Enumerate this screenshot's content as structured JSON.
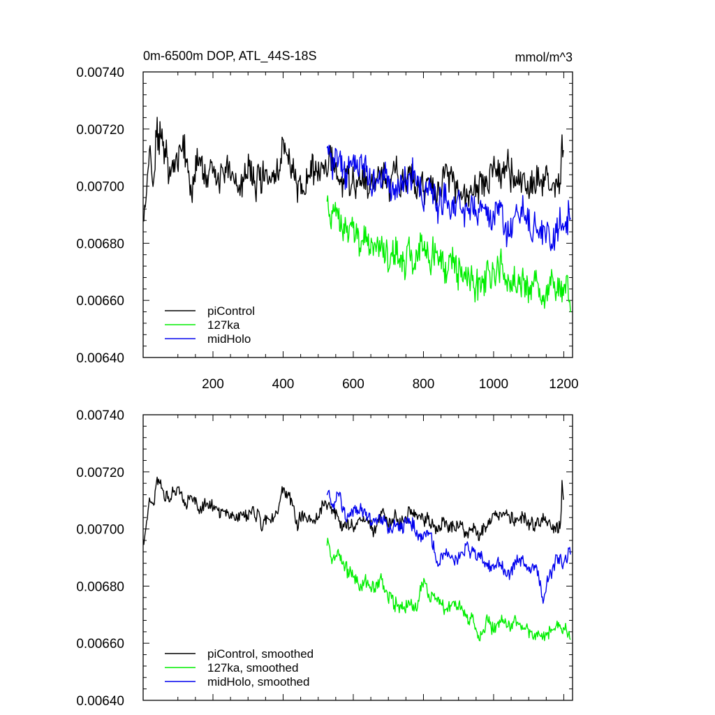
{
  "chart_data": [
    {
      "type": "line",
      "title": "0m-6500m DOP, ATL_44S-18S",
      "units": "mmol/m^3",
      "xlabel": "",
      "ylabel": "",
      "xlim": [
        1,
        1225
      ],
      "ylim": [
        0.0064,
        0.0074
      ],
      "x_ticks": [
        200,
        400,
        600,
        800,
        1000,
        1200
      ],
      "x_tick_labels": [
        "200",
        "400",
        "600",
        "800",
        "1000",
        "1200"
      ],
      "y_ticks": [
        0.0064,
        0.0066,
        0.0068,
        0.007,
        0.0072,
        0.0074
      ],
      "y_tick_labels": [
        "0.00640",
        "0.00660",
        "0.00680",
        "0.00700",
        "0.00720",
        "0.00740"
      ],
      "legend_position": "bottom-left",
      "grid": false,
      "series": [
        {
          "name": "piControl",
          "color": "#000000",
          "x": [
            1,
            10,
            20,
            30,
            40,
            60,
            80,
            100,
            120,
            140,
            160,
            180,
            200,
            220,
            240,
            260,
            280,
            300,
            320,
            340,
            360,
            380,
            400,
            420,
            440,
            460,
            480,
            500,
            520,
            540,
            560,
            580,
            600,
            620,
            640,
            660,
            680,
            700,
            720,
            740,
            760,
            780,
            800,
            820,
            840,
            860,
            880,
            900,
            920,
            940,
            960,
            980,
            1000,
            1020,
            1040,
            1060,
            1080,
            1100,
            1120,
            1140,
            1160,
            1180,
            1190,
            1195,
            1200
          ],
          "y": [
            0.00688,
            0.00698,
            0.00712,
            0.007,
            0.0072,
            0.00712,
            0.00705,
            0.00708,
            0.00712,
            0.007,
            0.0071,
            0.00704,
            0.00706,
            0.00702,
            0.00708,
            0.00704,
            0.00702,
            0.00706,
            0.007,
            0.00704,
            0.00702,
            0.00704,
            0.00715,
            0.00706,
            0.007,
            0.00702,
            0.00708,
            0.00704,
            0.00706,
            0.00708,
            0.007,
            0.00704,
            0.007,
            0.00706,
            0.00698,
            0.00702,
            0.00704,
            0.00698,
            0.00706,
            0.007,
            0.00704,
            0.007,
            0.007,
            0.00702,
            0.00696,
            0.00704,
            0.00702,
            0.00698,
            0.00696,
            0.00698,
            0.007,
            0.00702,
            0.00706,
            0.00704,
            0.00708,
            0.007,
            0.00702,
            0.007,
            0.00704,
            0.007,
            0.00702,
            0.007,
            0.00702,
            0.00718,
            0.00712
          ]
        },
        {
          "name": "127ka",
          "color": "#00ee00",
          "x": [
            525,
            540,
            560,
            580,
            600,
            620,
            640,
            660,
            680,
            700,
            720,
            740,
            760,
            780,
            800,
            820,
            840,
            860,
            880,
            900,
            920,
            940,
            960,
            980,
            1000,
            1020,
            1040,
            1060,
            1080,
            1100,
            1120,
            1140,
            1160,
            1180,
            1200,
            1220
          ],
          "y": [
            0.00694,
            0.0069,
            0.00688,
            0.00684,
            0.00686,
            0.0068,
            0.00682,
            0.00676,
            0.0068,
            0.00674,
            0.00678,
            0.00672,
            0.00676,
            0.00672,
            0.00682,
            0.00674,
            0.00678,
            0.0067,
            0.00676,
            0.00668,
            0.00672,
            0.00666,
            0.00664,
            0.0067,
            0.00666,
            0.00672,
            0.00664,
            0.00668,
            0.00666,
            0.00662,
            0.00668,
            0.0066,
            0.00666,
            0.00662,
            0.00666,
            0.0066
          ]
        },
        {
          "name": "midHolo",
          "color": "#0000ee",
          "x": [
            525,
            540,
            560,
            580,
            600,
            620,
            640,
            660,
            680,
            700,
            720,
            740,
            760,
            780,
            800,
            820,
            840,
            860,
            880,
            900,
            920,
            940,
            960,
            980,
            1000,
            1020,
            1040,
            1060,
            1080,
            1100,
            1120,
            1140,
            1160,
            1180,
            1200,
            1220
          ],
          "y": [
            0.00716,
            0.00708,
            0.0071,
            0.00704,
            0.00708,
            0.00706,
            0.00704,
            0.007,
            0.00704,
            0.00702,
            0.00698,
            0.007,
            0.00704,
            0.00702,
            0.00696,
            0.007,
            0.00692,
            0.00698,
            0.00692,
            0.00696,
            0.0069,
            0.00694,
            0.0069,
            0.00692,
            0.00686,
            0.00692,
            0.00684,
            0.0069,
            0.00692,
            0.00686,
            0.00688,
            0.00684,
            0.0068,
            0.00686,
            0.00688,
            0.0069
          ]
        }
      ]
    },
    {
      "type": "line",
      "title": "",
      "xlabel": "",
      "ylabel": "",
      "xlim": [
        1,
        1225
      ],
      "ylim": [
        0.0064,
        0.0074
      ],
      "x_ticks": [
        200,
        400,
        600,
        800,
        1000,
        1200
      ],
      "x_tick_labels": [],
      "y_ticks": [
        0.0064,
        0.0066,
        0.0068,
        0.007,
        0.0072,
        0.0074
      ],
      "y_tick_labels": [
        "0.00640",
        "0.00660",
        "0.00680",
        "0.00700",
        "0.00720",
        "0.00740"
      ],
      "legend_position": "bottom-left",
      "grid": false,
      "series": [
        {
          "name": "piControl, smoothed",
          "color": "#000000",
          "x": [
            1,
            10,
            20,
            30,
            40,
            50,
            60,
            80,
            100,
            120,
            140,
            160,
            180,
            200,
            220,
            240,
            260,
            280,
            300,
            320,
            340,
            360,
            380,
            400,
            420,
            440,
            460,
            480,
            500,
            520,
            540,
            560,
            580,
            600,
            620,
            640,
            660,
            680,
            700,
            720,
            740,
            760,
            780,
            800,
            820,
            840,
            860,
            880,
            900,
            920,
            940,
            960,
            980,
            1000,
            1020,
            1040,
            1060,
            1080,
            1100,
            1120,
            1140,
            1160,
            1180,
            1190,
            1195,
            1200
          ],
          "y": [
            0.00696,
            0.00702,
            0.0071,
            0.00708,
            0.00718,
            0.00716,
            0.0071,
            0.00712,
            0.00714,
            0.00708,
            0.00712,
            0.00706,
            0.0071,
            0.00708,
            0.00706,
            0.00706,
            0.00704,
            0.00706,
            0.00704,
            0.00706,
            0.00702,
            0.00704,
            0.00704,
            0.00714,
            0.0071,
            0.00702,
            0.00706,
            0.00704,
            0.00704,
            0.0071,
            0.00706,
            0.00702,
            0.00702,
            0.007,
            0.00704,
            0.00702,
            0.007,
            0.00706,
            0.00702,
            0.00704,
            0.00702,
            0.00706,
            0.00704,
            0.00704,
            0.00702,
            0.007,
            0.00702,
            0.007,
            0.00702,
            0.00698,
            0.007,
            0.00698,
            0.00702,
            0.00704,
            0.00704,
            0.00706,
            0.00702,
            0.00704,
            0.00702,
            0.00702,
            0.00704,
            0.00702,
            0.007,
            0.00702,
            0.00716,
            0.00712
          ]
        },
        {
          "name": "127ka, smoothed",
          "color": "#00ee00",
          "x": [
            525,
            540,
            560,
            580,
            600,
            620,
            640,
            660,
            680,
            700,
            720,
            740,
            760,
            780,
            800,
            820,
            840,
            860,
            880,
            900,
            920,
            940,
            960,
            980,
            1000,
            1020,
            1040,
            1060,
            1080,
            1100,
            1120,
            1140,
            1160,
            1180,
            1200,
            1220
          ],
          "y": [
            0.00696,
            0.0069,
            0.0069,
            0.00686,
            0.00684,
            0.0068,
            0.00682,
            0.00678,
            0.00682,
            0.00676,
            0.00674,
            0.00672,
            0.00674,
            0.00672,
            0.00682,
            0.00676,
            0.00676,
            0.00672,
            0.00674,
            0.00672,
            0.0067,
            0.00668,
            0.00662,
            0.00668,
            0.00664,
            0.00668,
            0.00666,
            0.00668,
            0.00666,
            0.00664,
            0.00662,
            0.00662,
            0.00664,
            0.00666,
            0.00666,
            0.0066
          ]
        },
        {
          "name": "midHolo, smoothed",
          "color": "#0000ee",
          "x": [
            525,
            540,
            560,
            580,
            600,
            620,
            640,
            660,
            680,
            700,
            720,
            740,
            760,
            780,
            800,
            820,
            840,
            860,
            880,
            900,
            920,
            940,
            960,
            980,
            1000,
            1020,
            1040,
            1060,
            1080,
            1100,
            1120,
            1140,
            1160,
            1180,
            1200,
            1220
          ],
          "y": [
            0.00714,
            0.00708,
            0.00712,
            0.00704,
            0.00706,
            0.00706,
            0.00704,
            0.00702,
            0.00704,
            0.007,
            0.00702,
            0.007,
            0.00704,
            0.00698,
            0.00698,
            0.007,
            0.00686,
            0.00692,
            0.0069,
            0.0069,
            0.00694,
            0.00692,
            0.0069,
            0.00688,
            0.00686,
            0.00688,
            0.00684,
            0.00688,
            0.0069,
            0.00686,
            0.00688,
            0.00676,
            0.00684,
            0.0069,
            0.00688,
            0.00692
          ]
        }
      ]
    }
  ]
}
